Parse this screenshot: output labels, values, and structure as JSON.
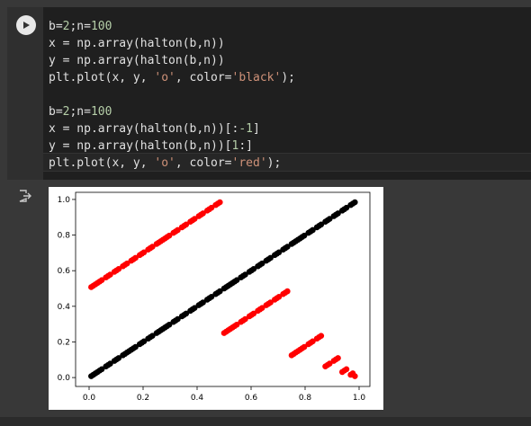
{
  "cell": {
    "run_icon": "play-icon",
    "code_lines": [
      "b=2;n=100",
      "x = np.array(halton(b,n))",
      "y = np.array(halton(b,n))",
      "plt.plot(x, y, 'o', color='black');",
      "",
      "b=2;n=100",
      "x = np.array(halton(b,n))[:-1]",
      "y = np.array(halton(b,n))[1:]",
      "plt.plot(x, y, 'o', color='red');"
    ]
  },
  "output": {
    "icon": "output-redirect-icon"
  },
  "chart_data": {
    "type": "scatter",
    "title": "",
    "xlabel": "",
    "ylabel": "",
    "xlim": [
      -0.05,
      1.04
    ],
    "ylim": [
      -0.05,
      1.04
    ],
    "xticks": [
      "0.0",
      "0.2",
      "0.4",
      "0.6",
      "0.8",
      "1.0"
    ],
    "yticks": [
      "0.0",
      "0.2",
      "0.4",
      "0.6",
      "0.8",
      "1.0"
    ],
    "grid": false,
    "series": [
      {
        "color": "#000000",
        "points": "halton base 2, n=100, x=y"
      },
      {
        "color": "#ff0000",
        "points": "consecutive halton base 2 pairs (x_i, x_{i+1}), n=99"
      }
    ]
  }
}
